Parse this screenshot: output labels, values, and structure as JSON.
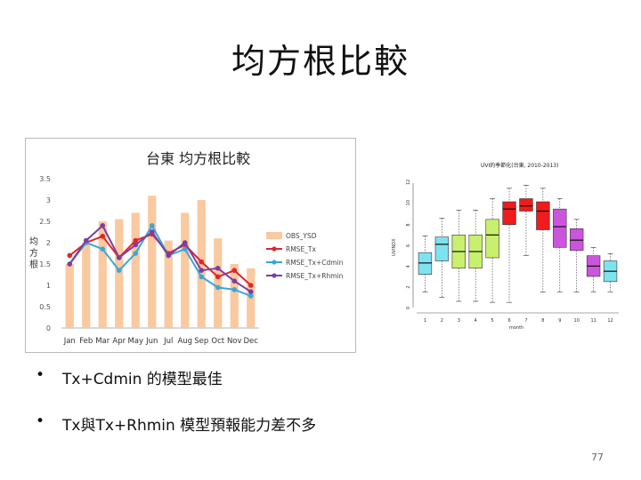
{
  "slide": {
    "title": "均方根比較",
    "bullets": [
      "Tx+Cdmin 的模型最佳",
      "Tx與Tx+Rhmin 模型預報能力差不多"
    ],
    "page_number": "77"
  },
  "chart_data": [
    {
      "type": "bar",
      "title": "台東 均方根比較",
      "ylabel": "均方根",
      "ylim": [
        0,
        3.5
      ],
      "yticks": [
        "0",
        "0.5",
        "1",
        "1.5",
        "2",
        "2.5",
        "3",
        "3.5"
      ],
      "categories": [
        "Jan",
        "Feb",
        "Mar",
        "Apr",
        "May",
        "Jun",
        "Jul",
        "Aug",
        "Sep",
        "Oct",
        "Nov",
        "Dec"
      ],
      "grid": false,
      "legend": "right",
      "series": [
        {
          "name": "OBS_YSD",
          "kind": "bar",
          "color": "#f9c9a0",
          "values": [
            1.5,
            2.0,
            2.5,
            2.55,
            2.7,
            3.1,
            2.05,
            2.7,
            3.0,
            2.1,
            1.5,
            1.4
          ]
        },
        {
          "name": "RMSE_Tx",
          "kind": "line",
          "color": "#e3242b",
          "values": [
            1.7,
            2.0,
            2.15,
            1.65,
            2.05,
            2.2,
            1.75,
            1.95,
            1.55,
            1.2,
            1.35,
            1.0
          ]
        },
        {
          "name": "RMSE_Tx+Cdmin",
          "kind": "line",
          "color": "#3aa7d8",
          "values": [
            1.5,
            2.0,
            1.85,
            1.35,
            1.75,
            2.4,
            1.7,
            1.85,
            1.2,
            0.95,
            0.9,
            0.75
          ]
        },
        {
          "name": "RMSE_Tx+Rhmin",
          "kind": "line",
          "color": "#7b3fa0",
          "values": [
            1.5,
            2.05,
            2.4,
            1.65,
            1.95,
            2.25,
            1.7,
            2.0,
            1.35,
            1.4,
            1.1,
            0.85
          ]
        }
      ]
    },
    {
      "type": "box",
      "title": "UVI的季節化(台東, 2010-2013)",
      "xlabel": "month",
      "ylabel": "UVINDX",
      "ylim": [
        0,
        12
      ],
      "yticks": [
        "0",
        "2",
        "4",
        "6",
        "8",
        "10",
        "12"
      ],
      "categories": [
        "1",
        "2",
        "3",
        "4",
        "5",
        "6",
        "7",
        "8",
        "9",
        "10",
        "11",
        "12"
      ],
      "boxes": [
        {
          "q1": 3.2,
          "median": 4.3,
          "q3": 5.3,
          "min": 1.5,
          "max": 6.9,
          "color": "#7fe3ef"
        },
        {
          "q1": 4.5,
          "median": 6.1,
          "q3": 6.8,
          "min": 1.0,
          "max": 8.6,
          "color": "#7fe3ef"
        },
        {
          "q1": 3.8,
          "median": 5.4,
          "q3": 7.0,
          "min": 0.6,
          "max": 9.4,
          "color": "#c9f06c"
        },
        {
          "q1": 3.8,
          "median": 5.4,
          "q3": 7.0,
          "min": 0.6,
          "max": 9.4,
          "color": "#c9f06c"
        },
        {
          "q1": 4.8,
          "median": 7.0,
          "q3": 8.5,
          "min": 0.5,
          "max": 10.5,
          "color": "#c9f06c"
        },
        {
          "q1": 8.0,
          "median": 9.5,
          "q3": 10.2,
          "min": 0.5,
          "max": 11.5,
          "color": "#ee1c1c"
        },
        {
          "q1": 9.3,
          "median": 9.8,
          "q3": 10.5,
          "min": 5.0,
          "max": 11.8,
          "color": "#ee1c1c"
        },
        {
          "q1": 7.5,
          "median": 9.3,
          "q3": 10.2,
          "min": 1.5,
          "max": 11.5,
          "color": "#ee1c1c"
        },
        {
          "q1": 5.8,
          "median": 7.8,
          "q3": 9.5,
          "min": 1.5,
          "max": 10.5,
          "color": "#cc55dd"
        },
        {
          "q1": 5.5,
          "median": 6.5,
          "q3": 7.6,
          "min": 1.5,
          "max": 8.5,
          "color": "#cc55dd"
        },
        {
          "q1": 3.0,
          "median": 4.0,
          "q3": 5.0,
          "min": 1.5,
          "max": 5.8,
          "color": "#cc55dd"
        },
        {
          "q1": 2.5,
          "median": 3.5,
          "q3": 4.5,
          "min": 1.5,
          "max": 5.2,
          "color": "#7fe3ef"
        }
      ]
    }
  ]
}
